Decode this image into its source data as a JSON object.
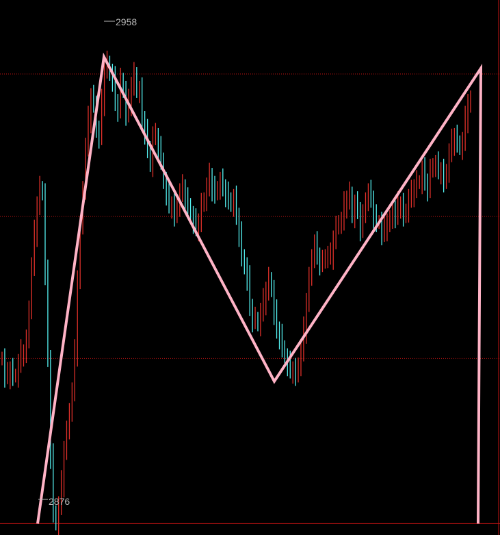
{
  "chart_data": {
    "type": "candlestick",
    "title": "",
    "xlabel": "",
    "ylabel": "",
    "grid": true,
    "ylim": [
      2874,
      2968
    ],
    "gridlines": [
      2955,
      2930,
      2905
    ],
    "bottom_line": 2876,
    "high_label": "2958",
    "low_label": "2876",
    "zigzag": [
      {
        "index": 0,
        "value": 2876
      },
      {
        "index": 1,
        "value": 2958
      },
      {
        "index": 2,
        "value": 2901
      },
      {
        "index": 3,
        "value": 2956
      },
      {
        "index": 4,
        "value": 2876
      }
    ],
    "bars_close": [
      2905,
      2902,
      2902,
      2903,
      2902,
      2902,
      2904,
      2906,
      2906,
      2908,
      2914,
      2921,
      2927,
      2932,
      2935,
      2934,
      2920,
      2905,
      2888,
      2878,
      2876,
      2879,
      2883,
      2889,
      2892,
      2896,
      2899,
      2906,
      2919,
      2928,
      2935,
      2942,
      2947,
      2951,
      2950,
      2945,
      2944,
      2950,
      2956,
      2957,
      2955,
      2954,
      2950,
      2949,
      2954,
      2952,
      2948,
      2950,
      2953,
      2955,
      2952,
      2952,
      2947,
      2945,
      2942,
      2939,
      2944,
      2944,
      2942,
      2940,
      2936,
      2934,
      2932,
      2932,
      2930,
      2932,
      2934,
      2935,
      2933,
      2932,
      2930,
      2929,
      2928,
      2929,
      2932,
      2933,
      2935,
      2937,
      2935,
      2934,
      2935,
      2936,
      2935,
      2934,
      2933,
      2932,
      2933,
      2930,
      2927,
      2923,
      2921,
      2919,
      2914,
      2912,
      2912,
      2911,
      2913,
      2915,
      2917,
      2919,
      2917,
      2913,
      2910,
      2909,
      2907,
      2905,
      2904,
      2903,
      2903,
      2902,
      2904,
      2906,
      2910,
      2915,
      2919,
      2923,
      2925,
      2923,
      2922,
      2922,
      2923,
      2923,
      2923,
      2926,
      2928,
      2929,
      2929,
      2932,
      2933,
      2934,
      2930,
      2932,
      2931,
      2928,
      2930,
      2933,
      2934,
      2933,
      2930,
      2929,
      2929,
      2927,
      2928,
      2929,
      2929,
      2931,
      2930,
      2932,
      2932,
      2930,
      2931,
      2933,
      2934,
      2935,
      2936,
      2936,
      2938,
      2936,
      2935,
      2938,
      2939,
      2939,
      2938,
      2938,
      2936,
      2938,
      2941,
      2943,
      2944,
      2943,
      2942,
      2943,
      2947,
      2950,
      2950
    ]
  }
}
